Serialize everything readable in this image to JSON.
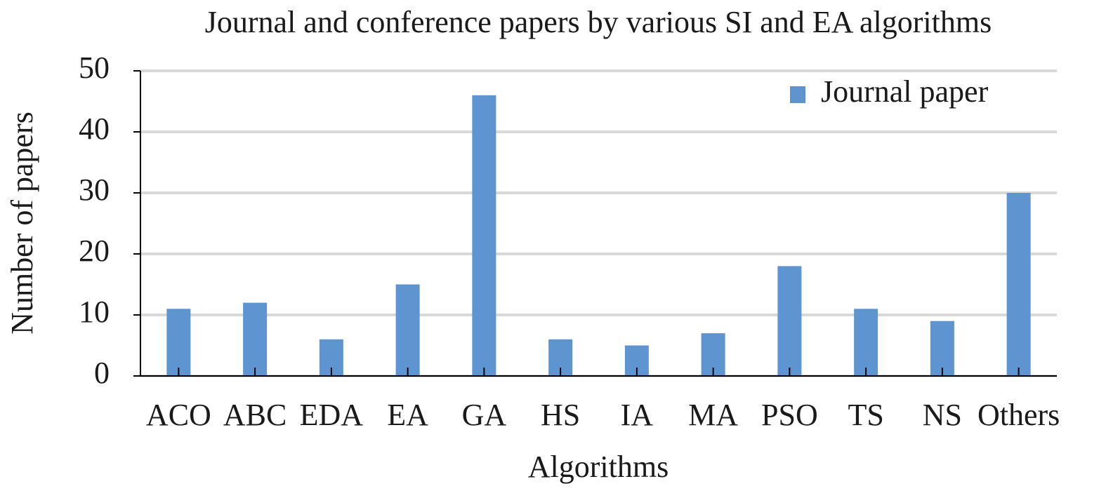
{
  "chart_data": {
    "type": "bar",
    "title": "Journal and conference papers by various SI and EA algorithms",
    "x_label": "Algorithms",
    "y_label": "Number of papers",
    "categories": [
      "ACO",
      "ABC",
      "EDA",
      "EA",
      "GA",
      "HS",
      "IA",
      "MA",
      "PSO",
      "TS",
      "NS",
      "Others"
    ],
    "series": [
      {
        "name": "Journal paper",
        "color": "#5e95d0",
        "values": [
          11,
          12,
          6,
          15,
          46,
          6,
          5,
          7,
          18,
          11,
          9,
          30
        ]
      }
    ],
    "ylim": [
      0,
      50
    ],
    "yticks": [
      0,
      10,
      20,
      30,
      40,
      50
    ],
    "grid": true,
    "legend": "upper right"
  }
}
